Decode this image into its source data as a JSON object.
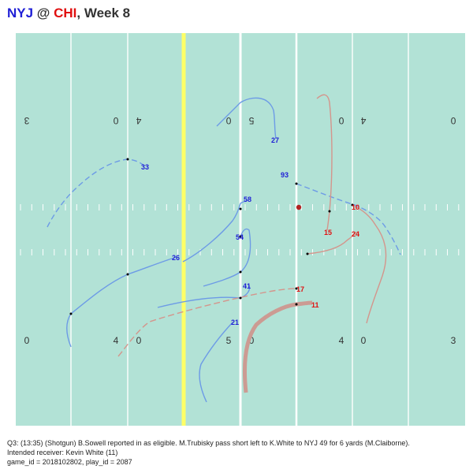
{
  "title": {
    "away": "NYJ",
    "separator": " @ ",
    "home": "CHI",
    "suffix": ", Week 8",
    "away_color": "#1f1fd6",
    "home_color": "#e01010"
  },
  "field": {
    "turf_color": "#b2e2d6",
    "line_color": "#ffffff",
    "scrimmage_color": "#ffffff",
    "first_down_color": "#ffff66",
    "top_numbers": [
      "3",
      "0",
      "4",
      "0",
      "5",
      "0",
      "4",
      "0"
    ],
    "bottom_numbers": [
      "0",
      "4",
      "0",
      "5",
      "0",
      "4",
      "0",
      "3"
    ],
    "ball_color": "#b22222"
  },
  "colors": {
    "offense_route": "#d4958c",
    "defense_route": "#6d9be6",
    "offense_label": "#e01010",
    "defense_label": "#1f1fd6",
    "target_route": "#cc9b93"
  },
  "players": {
    "defense": [
      "27",
      "33",
      "93",
      "58",
      "54",
      "26",
      "41",
      "21"
    ],
    "offense": [
      "10",
      "15",
      "24",
      "17",
      "11"
    ]
  },
  "caption": {
    "line1": "Q3: (13:35) (Shotgun) B.Sowell reported in as eligible. M.Trubisky pass short left to K.White to NYJ 49 for 6 yards (M.Claiborne).",
    "line2": "Intended receiver: Kevin White (11)",
    "line3": "game_id = 2018102802, play_id = 2087"
  }
}
